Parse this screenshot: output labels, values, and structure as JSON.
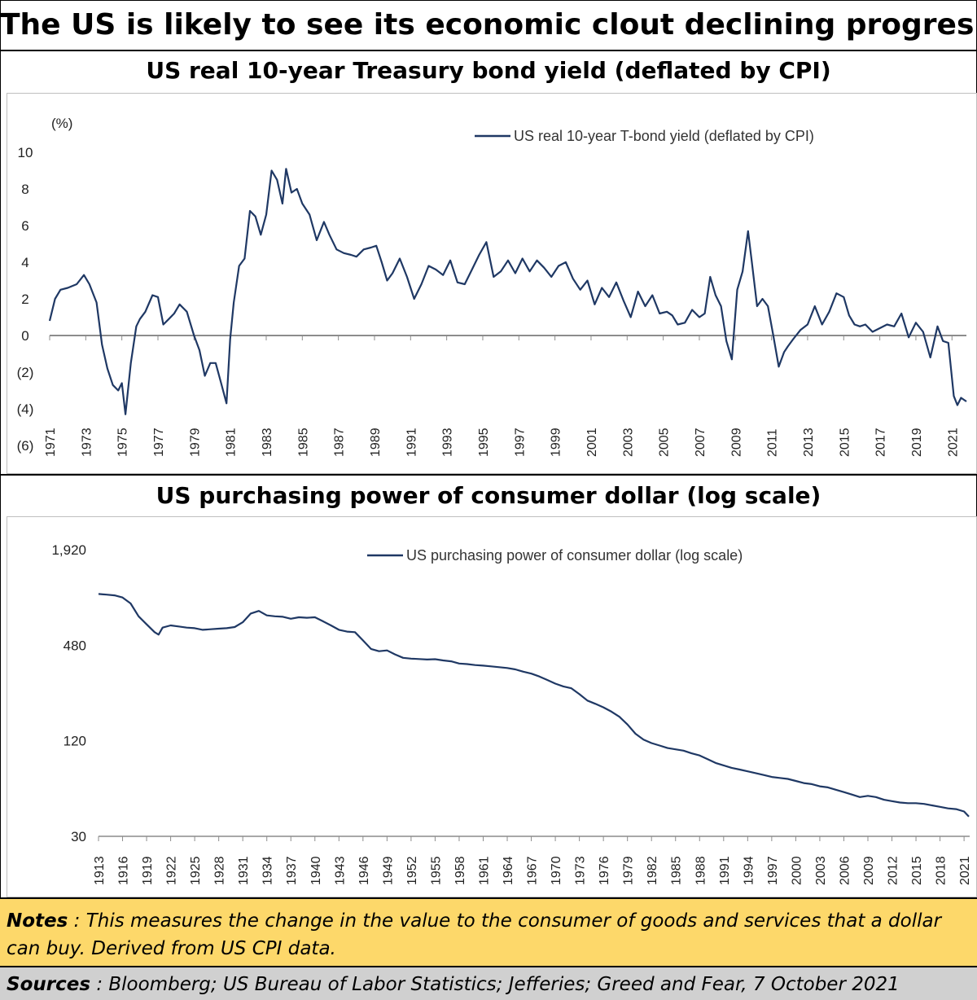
{
  "title": "The US is likely to see its economic clout declining progresively",
  "chart_data": [
    {
      "type": "line",
      "title": "US real 10-year Treasury bond yield (deflated by CPI)",
      "ylabel": "(%)",
      "ylim": [
        -6,
        10
      ],
      "yticks": [
        "10",
        "8",
        "6",
        "4",
        "2",
        "0",
        "(2)",
        "(4)",
        "(6)"
      ],
      "ytick_values": [
        10,
        8,
        6,
        4,
        2,
        0,
        -2,
        -4,
        -6
      ],
      "xlim": [
        1971,
        2021.8
      ],
      "xticks": [
        "1971",
        "1973",
        "1975",
        "1977",
        "1979",
        "1981",
        "1983",
        "1985",
        "1987",
        "1989",
        "1991",
        "1993",
        "1995",
        "1997",
        "1999",
        "2001",
        "2003",
        "2005",
        "2007",
        "2009",
        "2011",
        "2013",
        "2015",
        "2017",
        "2019",
        "2021"
      ],
      "legend_position": "top-right",
      "grid": false,
      "series": [
        {
          "name": "US real 10-year T-bond yield (deflated by CPI)",
          "color": "#1f3864",
          "x": [
            1971,
            1971.3,
            1971.6,
            1972,
            1972.5,
            1972.9,
            1973.2,
            1973.6,
            1973.9,
            1974.2,
            1974.5,
            1974.8,
            1975.0,
            1975.2,
            1975.5,
            1975.8,
            1976.0,
            1976.3,
            1976.7,
            1977.0,
            1977.3,
            1977.6,
            1977.9,
            1978.2,
            1978.6,
            1979.0,
            1979.3,
            1979.6,
            1979.9,
            1980.2,
            1980.5,
            1980.8,
            1981.0,
            1981.2,
            1981.5,
            1981.8,
            1982.1,
            1982.4,
            1982.7,
            1983.0,
            1983.3,
            1983.6,
            1983.9,
            1984.1,
            1984.4,
            1984.7,
            1985.0,
            1985.4,
            1985.8,
            1986.2,
            1986.5,
            1986.9,
            1987.3,
            1987.7,
            1988.0,
            1988.4,
            1988.8,
            1989.1,
            1989.4,
            1989.7,
            1990.0,
            1990.4,
            1990.8,
            1991.2,
            1991.6,
            1992.0,
            1992.4,
            1992.8,
            1993.2,
            1993.6,
            1994.0,
            1994.4,
            1994.8,
            1995.2,
            1995.6,
            1996.0,
            1996.4,
            1996.8,
            1997.2,
            1997.6,
            1998.0,
            1998.4,
            1998.8,
            1999.2,
            1999.6,
            2000.0,
            2000.4,
            2000.8,
            2001.2,
            2001.6,
            2002.0,
            2002.4,
            2002.8,
            2003.2,
            2003.6,
            2004.0,
            2004.4,
            2004.8,
            2005.2,
            2005.5,
            2005.8,
            2006.2,
            2006.6,
            2007.0,
            2007.3,
            2007.6,
            2007.9,
            2008.2,
            2008.5,
            2008.8,
            2009.1,
            2009.4,
            2009.7,
            2009.9,
            2010.2,
            2010.5,
            2010.8,
            2011.1,
            2011.4,
            2011.7,
            2011.9,
            2012.2,
            2012.6,
            2013.0,
            2013.4,
            2013.8,
            2014.2,
            2014.6,
            2015.0,
            2015.3,
            2015.6,
            2015.9,
            2016.2,
            2016.6,
            2017.0,
            2017.4,
            2017.8,
            2018.2,
            2018.6,
            2019.0,
            2019.4,
            2019.8,
            2020.2,
            2020.5,
            2020.8,
            2021.1,
            2021.3,
            2021.5,
            2021.8
          ],
          "y": [
            0.8,
            2.0,
            2.5,
            2.6,
            2.8,
            3.3,
            2.8,
            1.8,
            -0.5,
            -1.8,
            -2.7,
            -3.0,
            -2.6,
            -4.3,
            -1.5,
            0.5,
            0.9,
            1.3,
            2.2,
            2.1,
            0.6,
            0.9,
            1.2,
            1.7,
            1.3,
            0.0,
            -0.8,
            -2.2,
            -1.5,
            -1.5,
            -2.6,
            -3.7,
            -0.2,
            1.8,
            3.8,
            4.2,
            6.8,
            6.5,
            5.5,
            6.6,
            9.0,
            8.5,
            7.2,
            9.1,
            7.8,
            8.0,
            7.2,
            6.6,
            5.2,
            6.2,
            5.5,
            4.7,
            4.5,
            4.4,
            4.3,
            4.7,
            4.8,
            4.9,
            4.0,
            3.0,
            3.4,
            4.2,
            3.2,
            2.0,
            2.8,
            3.8,
            3.6,
            3.3,
            4.1,
            2.9,
            2.8,
            3.6,
            4.4,
            5.1,
            3.2,
            3.5,
            4.1,
            3.4,
            4.2,
            3.5,
            4.1,
            3.7,
            3.2,
            3.8,
            4.0,
            3.1,
            2.5,
            3.0,
            1.7,
            2.6,
            2.1,
            2.9,
            1.9,
            1.0,
            2.4,
            1.6,
            2.2,
            1.2,
            1.3,
            1.1,
            0.6,
            0.7,
            1.4,
            1.0,
            1.2,
            3.2,
            2.2,
            1.6,
            -0.3,
            -1.3,
            2.5,
            3.5,
            5.7,
            4.1,
            1.6,
            2.0,
            1.6,
            0.0,
            -1.7,
            -0.9,
            -0.6,
            -0.2,
            0.3,
            0.6,
            1.6,
            0.6,
            1.3,
            2.3,
            2.1,
            1.1,
            0.6,
            0.5,
            0.6,
            0.2,
            0.4,
            0.6,
            0.5,
            1.2,
            -0.1,
            0.7,
            0.2,
            -1.2,
            0.5,
            -0.3,
            -0.4,
            -3.3,
            -3.8,
            -3.4,
            -3.6
          ]
        }
      ]
    },
    {
      "type": "line",
      "title": "US purchasing power of consumer dollar (log scale)",
      "yscale": "log",
      "ylim": [
        30,
        1920
      ],
      "yticks": [
        "1,920",
        "480",
        "120",
        "30"
      ],
      "ytick_values": [
        1920,
        480,
        120,
        30
      ],
      "xlim": [
        1913,
        2021.7
      ],
      "xticks": [
        "1913",
        "1916",
        "1919",
        "1922",
        "1925",
        "1928",
        "1931",
        "1934",
        "1937",
        "1940",
        "1943",
        "1946",
        "1949",
        "1952",
        "1955",
        "1958",
        "1961",
        "1964",
        "1967",
        "1970",
        "1973",
        "1976",
        "1979",
        "1982",
        "1985",
        "1988",
        "1991",
        "1994",
        "1997",
        "2000",
        "2003",
        "2006",
        "2009",
        "2012",
        "2015",
        "2018",
        "2021"
      ],
      "legend_position": "top-center",
      "grid": false,
      "series": [
        {
          "name": "US purchasing power of consumer dollar (log scale)",
          "color": "#1f3864",
          "x": [
            1913,
            1914,
            1915,
            1916,
            1917,
            1918,
            1919,
            1920,
            1920.5,
            1921,
            1922,
            1923,
            1924,
            1925,
            1926,
            1927,
            1928,
            1929,
            1930,
            1931,
            1932,
            1933,
            1934,
            1935,
            1936,
            1937,
            1938,
            1939,
            1940,
            1941,
            1942,
            1943,
            1944,
            1945,
            1946,
            1947,
            1948,
            1949,
            1950,
            1951,
            1952,
            1953,
            1954,
            1955,
            1956,
            1957,
            1958,
            1959,
            1960,
            1961,
            1962,
            1963,
            1964,
            1965,
            1966,
            1967,
            1968,
            1969,
            1970,
            1971,
            1972,
            1973,
            1974,
            1975,
            1976,
            1977,
            1978,
            1979,
            1980,
            1981,
            1982,
            1983,
            1984,
            1985,
            1986,
            1987,
            1988,
            1989,
            1990,
            1991,
            1992,
            1993,
            1994,
            1995,
            1996,
            1997,
            1998,
            1999,
            2000,
            2001,
            2002,
            2003,
            2004,
            2005,
            2006,
            2007,
            2008,
            2009,
            2010,
            2011,
            2012,
            2013,
            2014,
            2015,
            2016,
            2017,
            2018,
            2019,
            2020,
            2021,
            2021.6
          ],
          "y": [
            1010,
            1000,
            990,
            960,
            880,
            730,
            650,
            580,
            560,
            620,
            640,
            630,
            620,
            615,
            600,
            605,
            610,
            615,
            625,
            670,
            760,
            790,
            740,
            730,
            725,
            705,
            720,
            715,
            720,
            680,
            640,
            600,
            585,
            580,
            515,
            455,
            440,
            445,
            420,
            400,
            395,
            393,
            390,
            392,
            385,
            380,
            368,
            365,
            360,
            357,
            353,
            349,
            345,
            338,
            327,
            318,
            305,
            290,
            275,
            264,
            257,
            236,
            215,
            205,
            195,
            183,
            170,
            152,
            133,
            122,
            116,
            112,
            108,
            106,
            104,
            100,
            97,
            92,
            87,
            84,
            81,
            79,
            77,
            75,
            73,
            71,
            70,
            69,
            67,
            65,
            64,
            62,
            61,
            59,
            57,
            55,
            53,
            54,
            53,
            51,
            50,
            49,
            48.5,
            48.5,
            48,
            47,
            46,
            45,
            44.5,
            43,
            40
          ]
        }
      ]
    }
  ],
  "notes": {
    "label": "Notes",
    "text": " : This measures the change in the value to the consumer of goods and services that a dollar can buy. Derived from US CPI data."
  },
  "sources": {
    "label": "Sources",
    "text": " : Bloomberg; US Bureau of Labor Statistics;  Jefferies; Greed and Fear, 7 October 2021"
  }
}
